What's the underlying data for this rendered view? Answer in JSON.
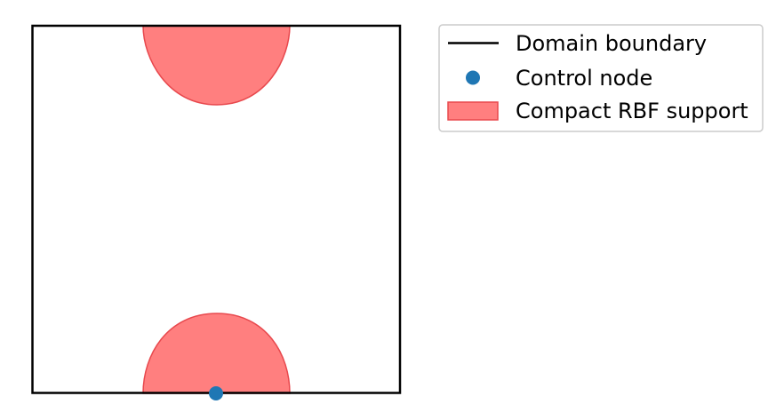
{
  "legend": {
    "items": [
      {
        "label": "Domain boundary",
        "kind": "line",
        "color": "#000000"
      },
      {
        "label": "Control node",
        "kind": "marker",
        "color": "#1f77b4"
      },
      {
        "label": "Compact RBF support",
        "kind": "patch",
        "color": "#ff7f7f",
        "edge_color": "#e8484d"
      }
    ]
  },
  "colors": {
    "domain_boundary": "#000000",
    "control_node": "#1f77b4",
    "support_fill": "#ff7f7f",
    "support_edge": "#e8484d",
    "legend_frame": "#cccccc"
  }
}
